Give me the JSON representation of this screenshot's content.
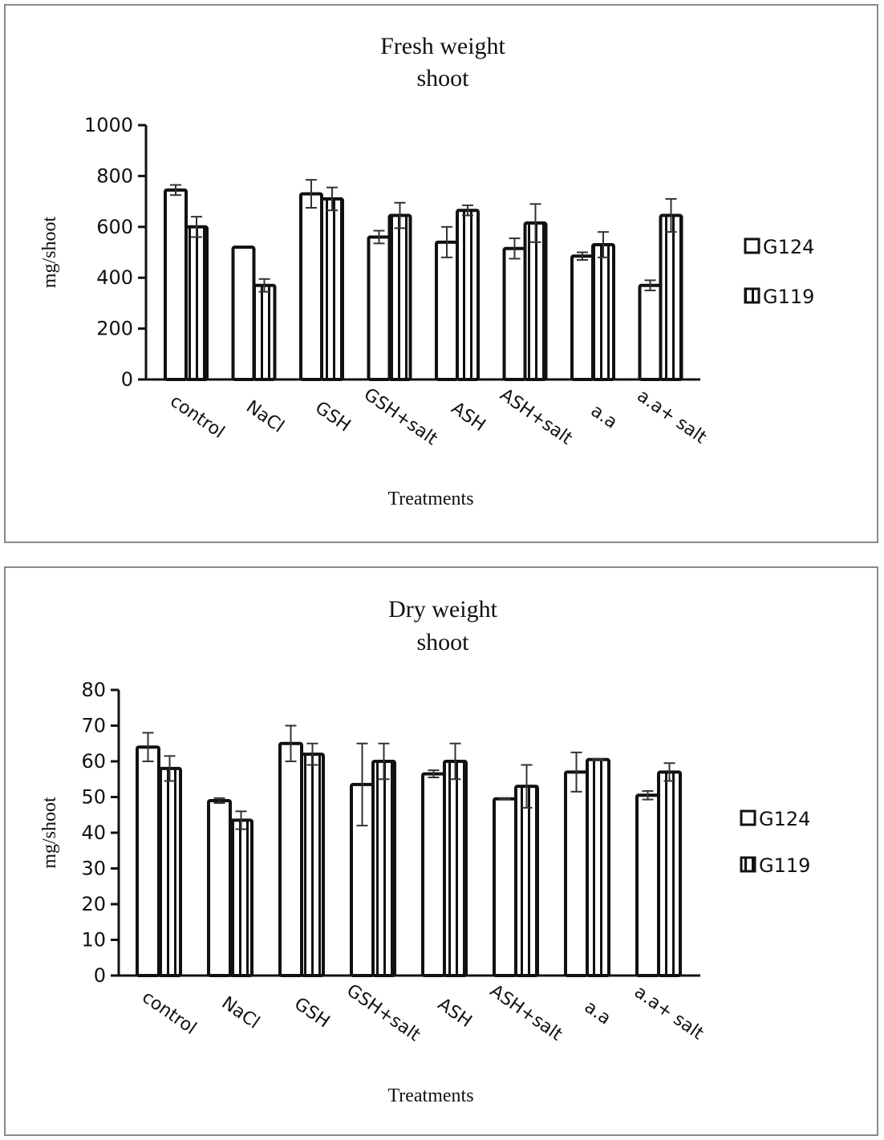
{
  "chart_data": [
    {
      "type": "bar",
      "title": "Fresh weight shoot",
      "title_lines": [
        "Fresh weight",
        "shoot"
      ],
      "xlabel": "Treatments",
      "ylabel": "mg/shoot",
      "ylim": [
        0,
        1000
      ],
      "yticks": [
        0,
        200,
        400,
        600,
        800,
        1000
      ],
      "grid": false,
      "legend_position": "right",
      "categories": [
        "control",
        "NaCl",
        "GSH",
        "GSH+salt",
        "ASH",
        "ASH+salt",
        "a.a",
        "a.a+ salt"
      ],
      "series": [
        {
          "name": "G124",
          "pattern": "hollow",
          "values": [
            745,
            520,
            730,
            560,
            540,
            515,
            485,
            370
          ],
          "errors": [
            20,
            0,
            55,
            25,
            60,
            40,
            15,
            20
          ]
        },
        {
          "name": "G119",
          "pattern": "vertical-stripes",
          "values": [
            600,
            370,
            710,
            645,
            665,
            615,
            530,
            645
          ],
          "errors": [
            40,
            25,
            45,
            50,
            20,
            75,
            50,
            65
          ]
        }
      ]
    },
    {
      "type": "bar",
      "title": "Dry weight shoot",
      "title_lines": [
        "Dry weight",
        "shoot"
      ],
      "xlabel": "Treatments",
      "ylabel": "mg/shoot",
      "ylim": [
        0,
        80
      ],
      "yticks": [
        0,
        10,
        20,
        30,
        40,
        50,
        60,
        70,
        80
      ],
      "grid": false,
      "legend_position": "right",
      "categories": [
        "control",
        "NaCl",
        "GSH",
        "GSH+salt",
        "ASH",
        "ASH+salt",
        "a.a",
        "a.a+ salt"
      ],
      "series": [
        {
          "name": "G124",
          "pattern": "hollow",
          "values": [
            64,
            49,
            65,
            53.5,
            56.5,
            49.5,
            57,
            50.5
          ],
          "errors": [
            4,
            0.7,
            5,
            11.5,
            1,
            0.2,
            5.5,
            1.2
          ]
        },
        {
          "name": "G119",
          "pattern": "vertical-stripes",
          "values": [
            58,
            43.5,
            62,
            60,
            60,
            53,
            60.5,
            57
          ],
          "errors": [
            3.5,
            2.5,
            3,
            5,
            5,
            6,
            0.2,
            2.5
          ]
        }
      ]
    }
  ]
}
